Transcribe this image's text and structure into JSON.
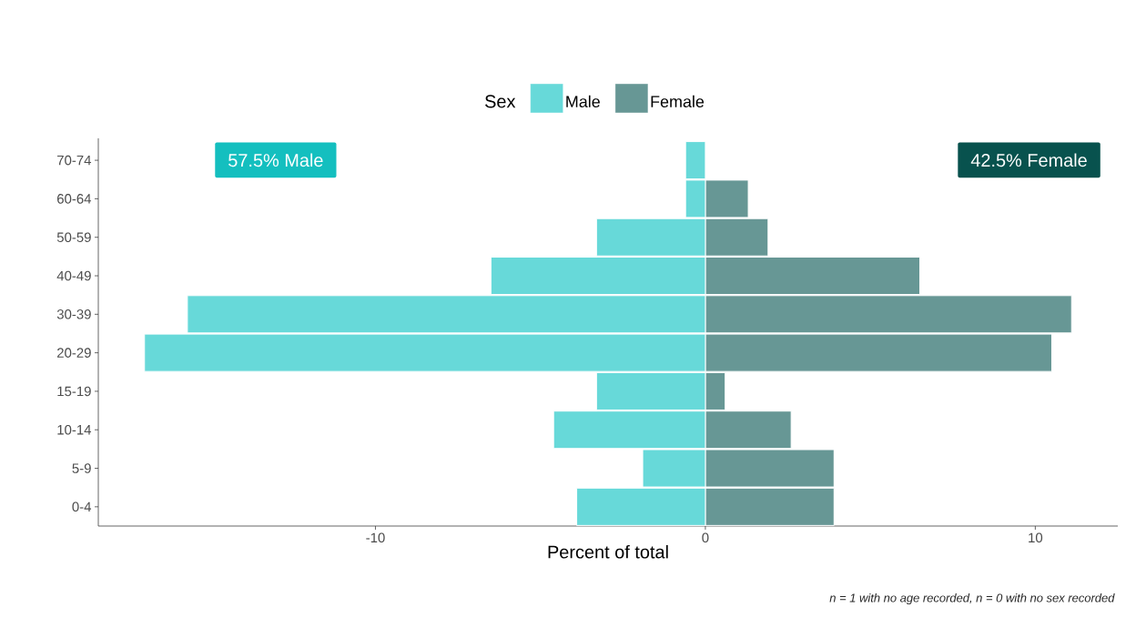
{
  "chart_data": {
    "type": "bar",
    "orientation": "horizontal",
    "stacked": true,
    "categories": [
      "70-74",
      "60-64",
      "50-59",
      "40-49",
      "30-39",
      "20-29",
      "15-19",
      "10-14",
      "5-9",
      "0-4"
    ],
    "series": [
      {
        "name": "Male",
        "color": "#67d9d9",
        "values": [
          -0.6,
          -0.6,
          -3.3,
          -6.5,
          -15.7,
          -17.0,
          -3.3,
          -4.6,
          -1.9,
          -3.9
        ]
      },
      {
        "name": "Female",
        "color": "#679795",
        "values": [
          null,
          1.3,
          1.9,
          6.5,
          11.1,
          10.5,
          0.6,
          2.6,
          3.9,
          3.9
        ]
      }
    ],
    "xlim": [
      -18.4,
      12.5
    ],
    "xticks": [
      -10,
      0,
      10
    ],
    "xlabel": "Percent of total",
    "legend": "top",
    "legend_title": "Sex",
    "annotations": [
      "57.5% Male",
      "42.5% Female",
      "n = 1 with no age recorded, n = 0 with no sex recorded"
    ]
  }
}
